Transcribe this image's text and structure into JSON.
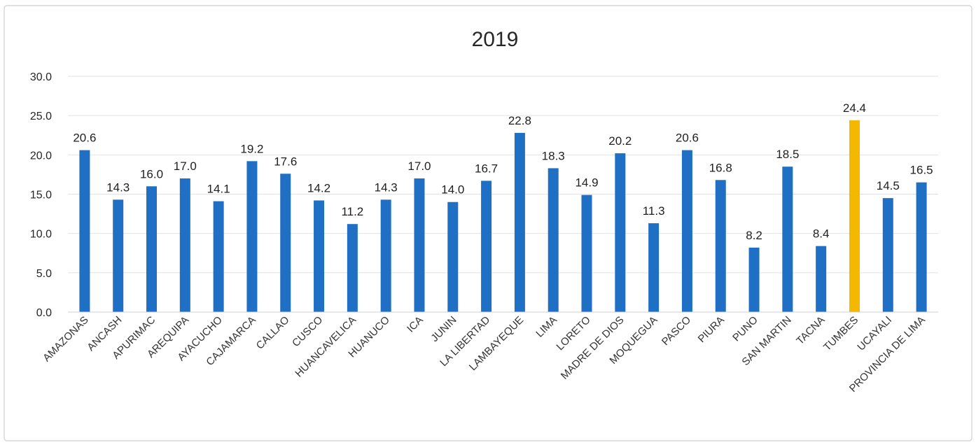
{
  "chart_data": {
    "type": "bar",
    "title": "2019",
    "xlabel": "",
    "ylabel": "",
    "ylim": [
      0,
      30
    ],
    "yticks": [
      "0.0",
      "5.0",
      "10.0",
      "15.0",
      "20.0",
      "25.0",
      "30.0"
    ],
    "grid": true,
    "legend": "none",
    "categories": [
      "AMAZONAS",
      "ANCASH",
      "APURIMAC",
      "AREQUIPA",
      "AYACUCHO",
      "CAJAMARCA",
      "CALLAO",
      "CUSCO",
      "HUANCAVELICA",
      "HUANUCO",
      "ICA",
      "JUNIN",
      "LA LIBERTAD",
      "LAMBAYEQUE",
      "LIMA",
      "LORETO",
      "MADRE DE DIOS",
      "MOQUEGUA",
      "PASCO",
      "PIURA",
      "PUNO",
      "SAN MARTIN",
      "TACNA",
      "TUMBES",
      "UCAYALI",
      "PROVINCIA DE LIMA"
    ],
    "values": [
      20.6,
      14.3,
      16.0,
      17.0,
      14.1,
      19.2,
      17.6,
      14.2,
      11.2,
      14.3,
      17.0,
      14.0,
      16.7,
      22.8,
      18.3,
      14.9,
      20.2,
      11.3,
      20.6,
      16.8,
      8.2,
      18.5,
      8.4,
      24.4,
      14.5,
      16.5
    ],
    "labels": [
      "20.6",
      "14.3",
      "16.0",
      "17.0",
      "14.1",
      "19.2",
      "17.6",
      "14.2",
      "11.2",
      "14.3",
      "17.0",
      "14.0",
      "16.7",
      "22.8",
      "18.3",
      "14.9",
      "20.2",
      "11.3",
      "20.6",
      "16.8",
      "8.2",
      "18.5",
      "8.4",
      "24.4",
      "14.5",
      "16.5"
    ],
    "bar_color": "#1f6fc4",
    "highlight": {
      "category": "TUMBES",
      "color": "#f5b800"
    }
  }
}
